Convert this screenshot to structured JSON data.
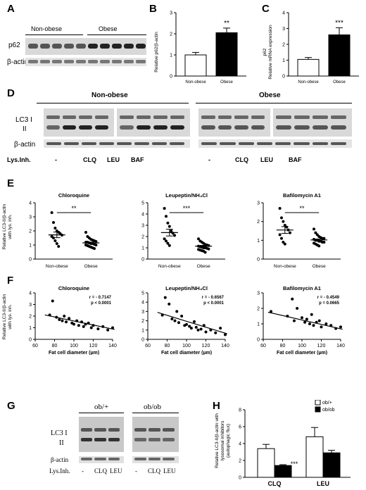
{
  "panels": {
    "A": "A",
    "B": "B",
    "C": "C",
    "D": "D",
    "E": "E",
    "F": "F",
    "G": "G",
    "H": "H"
  },
  "panelA": {
    "group_left": "Non-obese",
    "group_right": "Obese",
    "row1": "p62",
    "row2": "β-actin"
  },
  "panelB": {
    "ylabel": "Relative p62/β-actin",
    "sig": "**",
    "categories": [
      "Non-obese",
      "Obese"
    ],
    "values": [
      1.0,
      2.05
    ],
    "errors": [
      0.12,
      0.22
    ],
    "ylim": [
      0,
      3
    ],
    "yticks": [
      "0",
      "1",
      "2",
      "3"
    ]
  },
  "panelC": {
    "ylabel_line1": "p62",
    "ylabel_line2": "Relative mRNA expression",
    "sig": "***",
    "categories": [
      "Non-obese",
      "Obese"
    ],
    "values": [
      1.05,
      2.6
    ],
    "errors": [
      0.12,
      0.45
    ],
    "ylim": [
      0,
      4
    ],
    "yticks": [
      "0",
      "1",
      "2",
      "3",
      "4"
    ]
  },
  "panelD": {
    "group_left": "Non-obese",
    "group_right": "Obese",
    "row1a": "LC3 I",
    "row1b": "II",
    "row2": "β-actin",
    "row3": "Lys.Inh.",
    "lanes": [
      "-",
      "CLQ",
      "LEU",
      "BAF",
      "-",
      "CLQ",
      "LEU",
      "BAF"
    ]
  },
  "panelE": {
    "ylabel_line1": "Relative LC3-II/β-actin",
    "ylabel_line2": "with lys. inh.",
    "categories": [
      "Non-obese",
      "Obese"
    ],
    "plots": [
      {
        "title": "Chloroquine",
        "sig": "**",
        "ylim": [
          0,
          4
        ],
        "yticks": [
          "0",
          "1",
          "2",
          "3",
          "4"
        ],
        "nonobese": [
          3.3,
          2.6,
          2.2,
          2.0,
          1.9,
          1.8,
          1.7,
          1.6,
          1.5,
          1.3,
          1.1,
          0.9
        ],
        "obese": [
          1.9,
          1.6,
          1.5,
          1.4,
          1.35,
          1.3,
          1.25,
          1.2,
          1.2,
          1.15,
          1.1,
          1.1,
          1.05,
          1.0,
          1.0,
          0.95,
          0.9,
          0.85,
          0.8,
          0.75
        ],
        "means": [
          1.72,
          1.15
        ],
        "sem": [
          0.2,
          0.06
        ]
      },
      {
        "title": "Leupeptin/NH₄Cl",
        "sig": "***",
        "ylim": [
          0,
          5
        ],
        "yticks": [
          "0",
          "1",
          "2",
          "3",
          "4",
          "5"
        ],
        "nonobese": [
          4.5,
          3.8,
          3.2,
          2.9,
          2.5,
          2.3,
          2.1,
          1.8,
          1.6,
          1.4,
          1.2
        ],
        "obese": [
          1.8,
          1.6,
          1.5,
          1.4,
          1.3,
          1.25,
          1.2,
          1.15,
          1.1,
          1.05,
          1.0,
          1.0,
          0.95,
          0.9,
          0.85,
          0.8,
          0.75,
          0.7,
          0.6
        ],
        "means": [
          2.35,
          1.15
        ],
        "sem": [
          0.3,
          0.07
        ]
      },
      {
        "title": "Bafilomycin A1",
        "sig": "**",
        "ylim": [
          0,
          3
        ],
        "yticks": [
          "0",
          "1",
          "2",
          "3"
        ],
        "nonobese": [
          2.7,
          2.2,
          2.0,
          1.8,
          1.7,
          1.55,
          1.4,
          1.3,
          1.1,
          0.9,
          0.8
        ],
        "obese": [
          1.6,
          1.4,
          1.3,
          1.2,
          1.15,
          1.1,
          1.1,
          1.05,
          1.0,
          1.0,
          0.95,
          0.95,
          0.9,
          0.9,
          0.85,
          0.8,
          0.75,
          0.7
        ],
        "means": [
          1.55,
          1.02
        ],
        "sem": [
          0.18,
          0.05
        ]
      }
    ]
  },
  "panelF": {
    "ylabel_line1": "Relative LC3-II/β-actin",
    "ylabel_line2": "with lys. inh.",
    "xlabel": "Fat cell diameter (µm)",
    "xticks": [
      "60",
      "80",
      "100",
      "120",
      "140"
    ],
    "plots": [
      {
        "title": "Chloroquine",
        "r": "r = - 0.7147",
        "p": "p < 0.0001",
        "ylim": [
          0,
          4
        ],
        "yticks": [
          "0",
          "1",
          "2",
          "3",
          "4"
        ],
        "points": [
          [
            75,
            2.1
          ],
          [
            78,
            3.3
          ],
          [
            82,
            1.9
          ],
          [
            85,
            1.7
          ],
          [
            88,
            1.6
          ],
          [
            90,
            2.0
          ],
          [
            92,
            1.5
          ],
          [
            95,
            1.8
          ],
          [
            98,
            1.4
          ],
          [
            100,
            1.3
          ],
          [
            103,
            1.6
          ],
          [
            105,
            1.2
          ],
          [
            108,
            1.5
          ],
          [
            110,
            1.1
          ],
          [
            112,
            1.3
          ],
          [
            115,
            1.4
          ],
          [
            118,
            1.0
          ],
          [
            120,
            1.2
          ],
          [
            125,
            0.9
          ],
          [
            130,
            1.1
          ],
          [
            135,
            0.8
          ],
          [
            140,
            1.0
          ]
        ],
        "line": [
          [
            70,
            2.1
          ],
          [
            142,
            0.85
          ]
        ]
      },
      {
        "title": "Leupeptin/NH₄Cl",
        "r": "r = - 0.6567",
        "p": "p < 0.0001",
        "ylim": [
          0,
          5
        ],
        "yticks": [
          "0",
          "1",
          "2",
          "3",
          "4",
          "5"
        ],
        "points": [
          [
            75,
            2.6
          ],
          [
            78,
            4.5
          ],
          [
            82,
            3.8
          ],
          [
            85,
            2.2
          ],
          [
            88,
            2.0
          ],
          [
            90,
            3.0
          ],
          [
            92,
            1.8
          ],
          [
            95,
            2.5
          ],
          [
            98,
            1.5
          ],
          [
            100,
            1.6
          ],
          [
            103,
            1.4
          ],
          [
            105,
            1.2
          ],
          [
            108,
            1.9
          ],
          [
            110,
            1.3
          ],
          [
            112,
            1.0
          ],
          [
            115,
            1.1
          ],
          [
            118,
            1.5
          ],
          [
            120,
            0.8
          ],
          [
            125,
            1.0
          ],
          [
            130,
            0.7
          ],
          [
            135,
            1.2
          ],
          [
            140,
            0.5
          ]
        ],
        "line": [
          [
            70,
            2.9
          ],
          [
            142,
            0.6
          ]
        ]
      },
      {
        "title": "Bafilomycin A1",
        "r": "r = - 0.4549",
        "p": "p = 0.0665",
        "ylim": [
          0,
          3
        ],
        "yticks": [
          "0",
          "1",
          "2",
          "3"
        ],
        "points": [
          [
            68,
            1.8
          ],
          [
            85,
            1.5
          ],
          [
            90,
            2.6
          ],
          [
            92,
            1.2
          ],
          [
            95,
            2.0
          ],
          [
            100,
            1.4
          ],
          [
            103,
            1.1
          ],
          [
            105,
            1.3
          ],
          [
            108,
            1.0
          ],
          [
            110,
            1.6
          ],
          [
            112,
            0.9
          ],
          [
            115,
            1.1
          ],
          [
            118,
            1.2
          ],
          [
            120,
            0.8
          ],
          [
            125,
            1.0
          ],
          [
            130,
            0.9
          ],
          [
            135,
            0.7
          ],
          [
            140,
            0.8
          ]
        ],
        "line": [
          [
            65,
            1.75
          ],
          [
            142,
            0.65
          ]
        ]
      }
    ]
  },
  "panelG": {
    "group_left": "ob/+",
    "group_right": "ob/ob",
    "row1a": "LC3 I",
    "row1b": "II",
    "row2": "β-actin",
    "row3": "Lys.Inh.",
    "lanes": [
      "-",
      "CLQ",
      "LEU",
      "-",
      "CLQ",
      "LEU"
    ]
  },
  "panelH": {
    "ylabel_line1": "Relative LC3-II/β-actin with",
    "ylabel_line2": "lysosomal inhibitors",
    "ylabel_line3": "(autophagic flux)",
    "legend": [
      "ob/+",
      "ob/ob"
    ],
    "categories": [
      "CLQ",
      "LEU"
    ],
    "series": [
      {
        "name": "ob/+",
        "values": [
          3.4,
          4.8
        ],
        "errors": [
          0.5,
          1.1
        ],
        "color": "#ffffff"
      },
      {
        "name": "ob/ob",
        "values": [
          1.4,
          2.9
        ],
        "errors": [
          0.1,
          0.3
        ],
        "color": "#000000"
      }
    ],
    "sig": "***",
    "ylim": [
      0,
      8
    ],
    "yticks": [
      "0",
      "2",
      "4",
      "6",
      "8"
    ]
  }
}
